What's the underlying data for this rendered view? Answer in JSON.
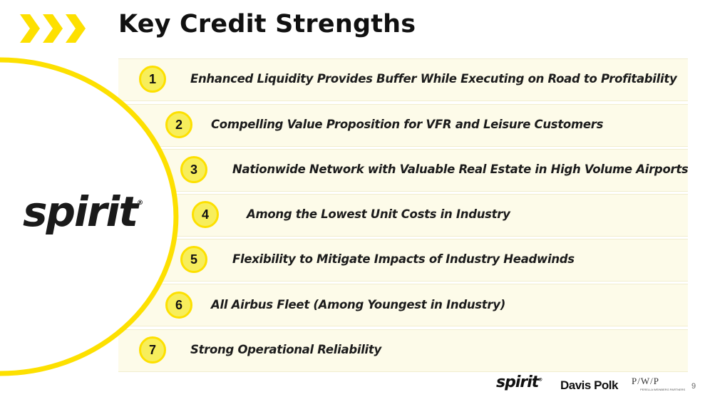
{
  "header": {
    "title": "Key Credit Strengths"
  },
  "colors": {
    "accent_yellow": "#fde000",
    "circle_fill": "#f7ee5c",
    "row_background": "#fdfbe9"
  },
  "logo": {
    "text": "spirit",
    "trademark": "®"
  },
  "strengths": [
    {
      "number": "1",
      "text": "Enhanced Liquidity Provides Buffer While Executing on Road to Profitability"
    },
    {
      "number": "2",
      "text": "Compelling Value Proposition for VFR and Leisure Customers"
    },
    {
      "number": "3",
      "text": "Nationwide Network with Valuable Real Estate in High Volume Airports"
    },
    {
      "number": "4",
      "text": "Among the Lowest Unit Costs in Industry"
    },
    {
      "number": "5",
      "text": "Flexibility to Mitigate Impacts of Industry Headwinds"
    },
    {
      "number": "6",
      "text": "All Airbus Fleet (Among Youngest in Industry)"
    },
    {
      "number": "7",
      "text": "Strong Operational Reliability"
    }
  ],
  "footer": {
    "spirit_logo": "spirit",
    "trademark": "®",
    "davis_polk_logo": "Davis Polk",
    "pwp_logo": "P/W/P",
    "pwp_subtext": "PERELLA WEINBERG PARTNERS",
    "page_number": "9"
  }
}
